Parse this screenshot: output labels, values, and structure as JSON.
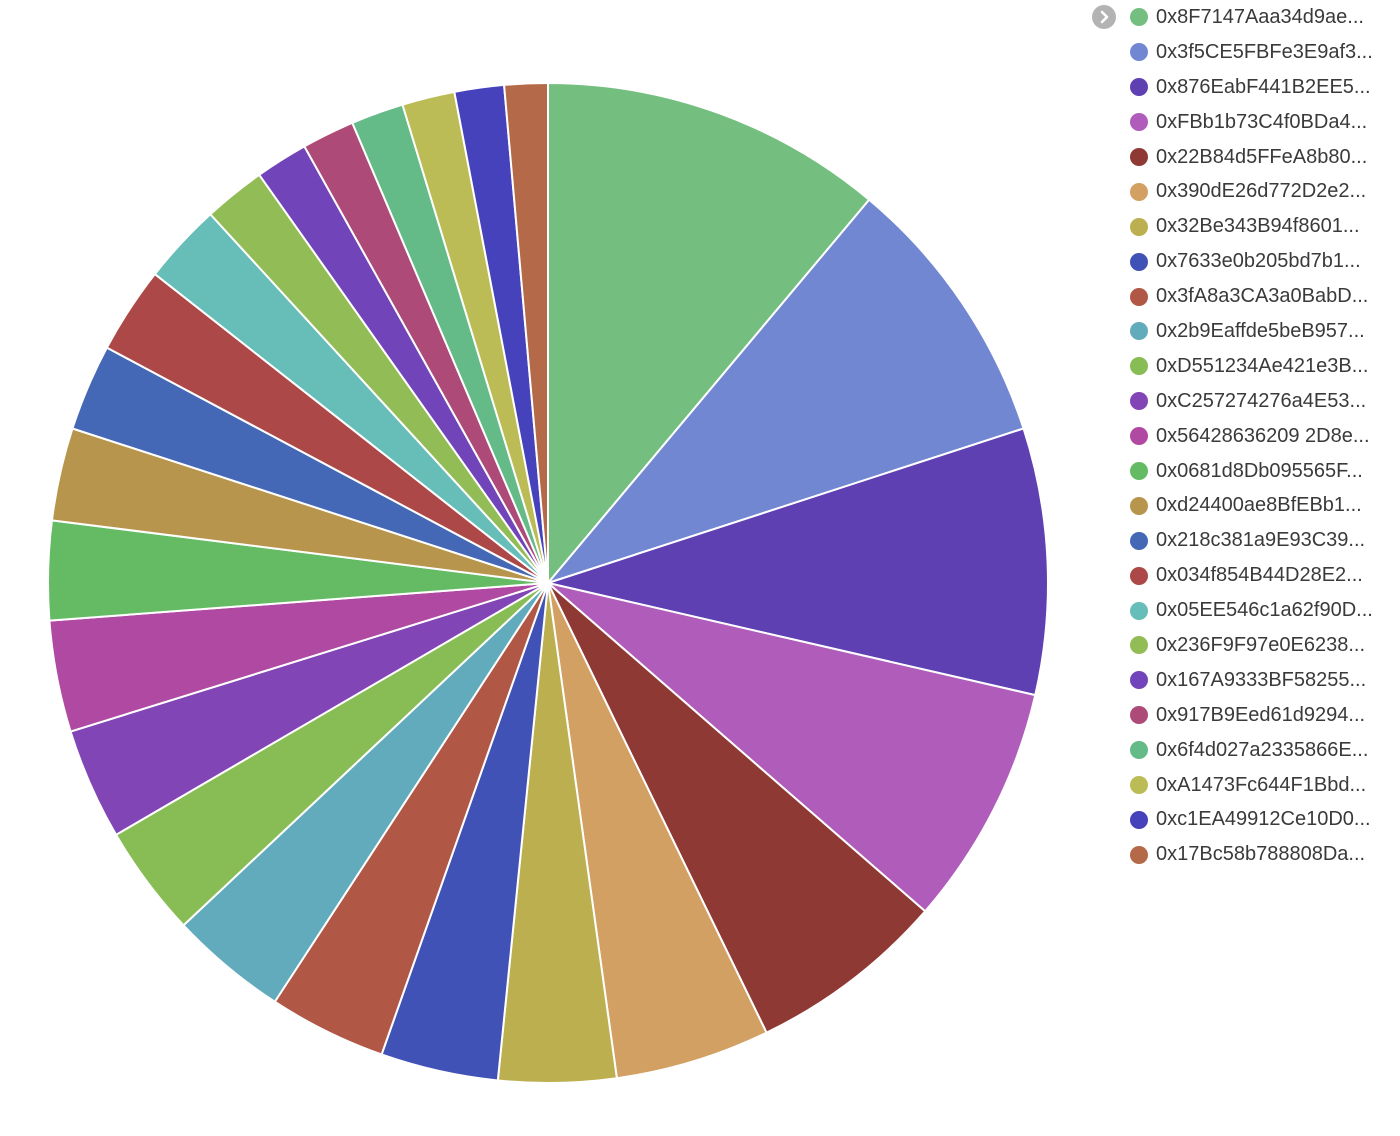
{
  "chart_data": {
    "type": "pie",
    "title": "",
    "legend_position": "right",
    "slices": [
      {
        "label": "0x8F7147Aaa34d9ae...",
        "value": 11.1,
        "color": "#74bf80"
      },
      {
        "label": "0x3f5CE5FBFe3E9af3...",
        "value": 8.9,
        "color": "#7187d2"
      },
      {
        "label": "0x876EabF441B2EE5...",
        "value": 8.6,
        "color": "#5e40b2"
      },
      {
        "label": "0xFBb1b73C4f0BDa4...",
        "value": 7.8,
        "color": "#b05cba"
      },
      {
        "label": "0x22B84d5FFeA8b80...",
        "value": 6.4,
        "color": "#8f3934"
      },
      {
        "label": "0x390dE26d772D2e2...",
        "value": 5.0,
        "color": "#d3a064"
      },
      {
        "label": "0x32Be343B94f8601...",
        "value": 3.8,
        "color": "#bcaf50"
      },
      {
        "label": "0x7633e0b205bd7b1...",
        "value": 3.8,
        "color": "#4152b6"
      },
      {
        "label": "0x3fA8a3CA3a0BabD...",
        "value": 3.8,
        "color": "#b05745"
      },
      {
        "label": "0x2b9Eaffde5beB957...",
        "value": 3.8,
        "color": "#61abbc"
      },
      {
        "label": "0xD551234Ae421e3B...",
        "value": 3.6,
        "color": "#88bc55"
      },
      {
        "label": "0xC257274276a4E53...",
        "value": 3.6,
        "color": "#8245b6"
      },
      {
        "label": "0x56428636209 2D8e...",
        "value": 3.6,
        "color": "#b049a2"
      },
      {
        "label": "0x0681d8Db095565F...",
        "value": 3.2,
        "color": "#64bb64"
      },
      {
        "label": "0xd24400ae8BfEBb1...",
        "value": 3.0,
        "color": "#b7954c"
      },
      {
        "label": "0x218c381a9E93C39...",
        "value": 2.8,
        "color": "#4568b6"
      },
      {
        "label": "0x034f854B44D28E2...",
        "value": 2.8,
        "color": "#ac4848"
      },
      {
        "label": "0x05EE546c1a62f90D...",
        "value": 2.6,
        "color": "#67bdb7"
      },
      {
        "label": "0x236F9F97e0E6238...",
        "value": 2.0,
        "color": "#92bc55"
      },
      {
        "label": "0x167A9333BF58255...",
        "value": 1.7,
        "color": "#7244ba"
      },
      {
        "label": "0x917B9Eed61d9294...",
        "value": 1.7,
        "color": "#ad4a78"
      },
      {
        "label": "0x6f4d027a2335866E...",
        "value": 1.7,
        "color": "#64bb88"
      },
      {
        "label": "0xA1473Fc644F1Bbd...",
        "value": 1.7,
        "color": "#bcbc56"
      },
      {
        "label": "0xc1EA49912Ce10D0...",
        "value": 1.6,
        "color": "#4542bb"
      },
      {
        "label": "0x17Bc58b788808Da...",
        "value": 1.4,
        "color": "#b46a48"
      }
    ]
  },
  "legend_toggle": {
    "icon": "chevron-right-icon",
    "color": "#b3b3b3"
  }
}
